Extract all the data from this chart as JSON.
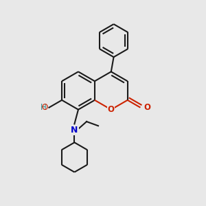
{
  "background_color": "#e8e8e8",
  "bond_color": "#1a1a1a",
  "oxygen_color": "#cc2200",
  "nitrogen_color": "#0000cc",
  "hydrogen_color": "#338888",
  "line_width": 1.5,
  "dbo": 0.09,
  "figsize": [
    3.0,
    3.0
  ],
  "dpi": 100,
  "xlim": [
    0,
    10
  ],
  "ylim": [
    0,
    10
  ]
}
